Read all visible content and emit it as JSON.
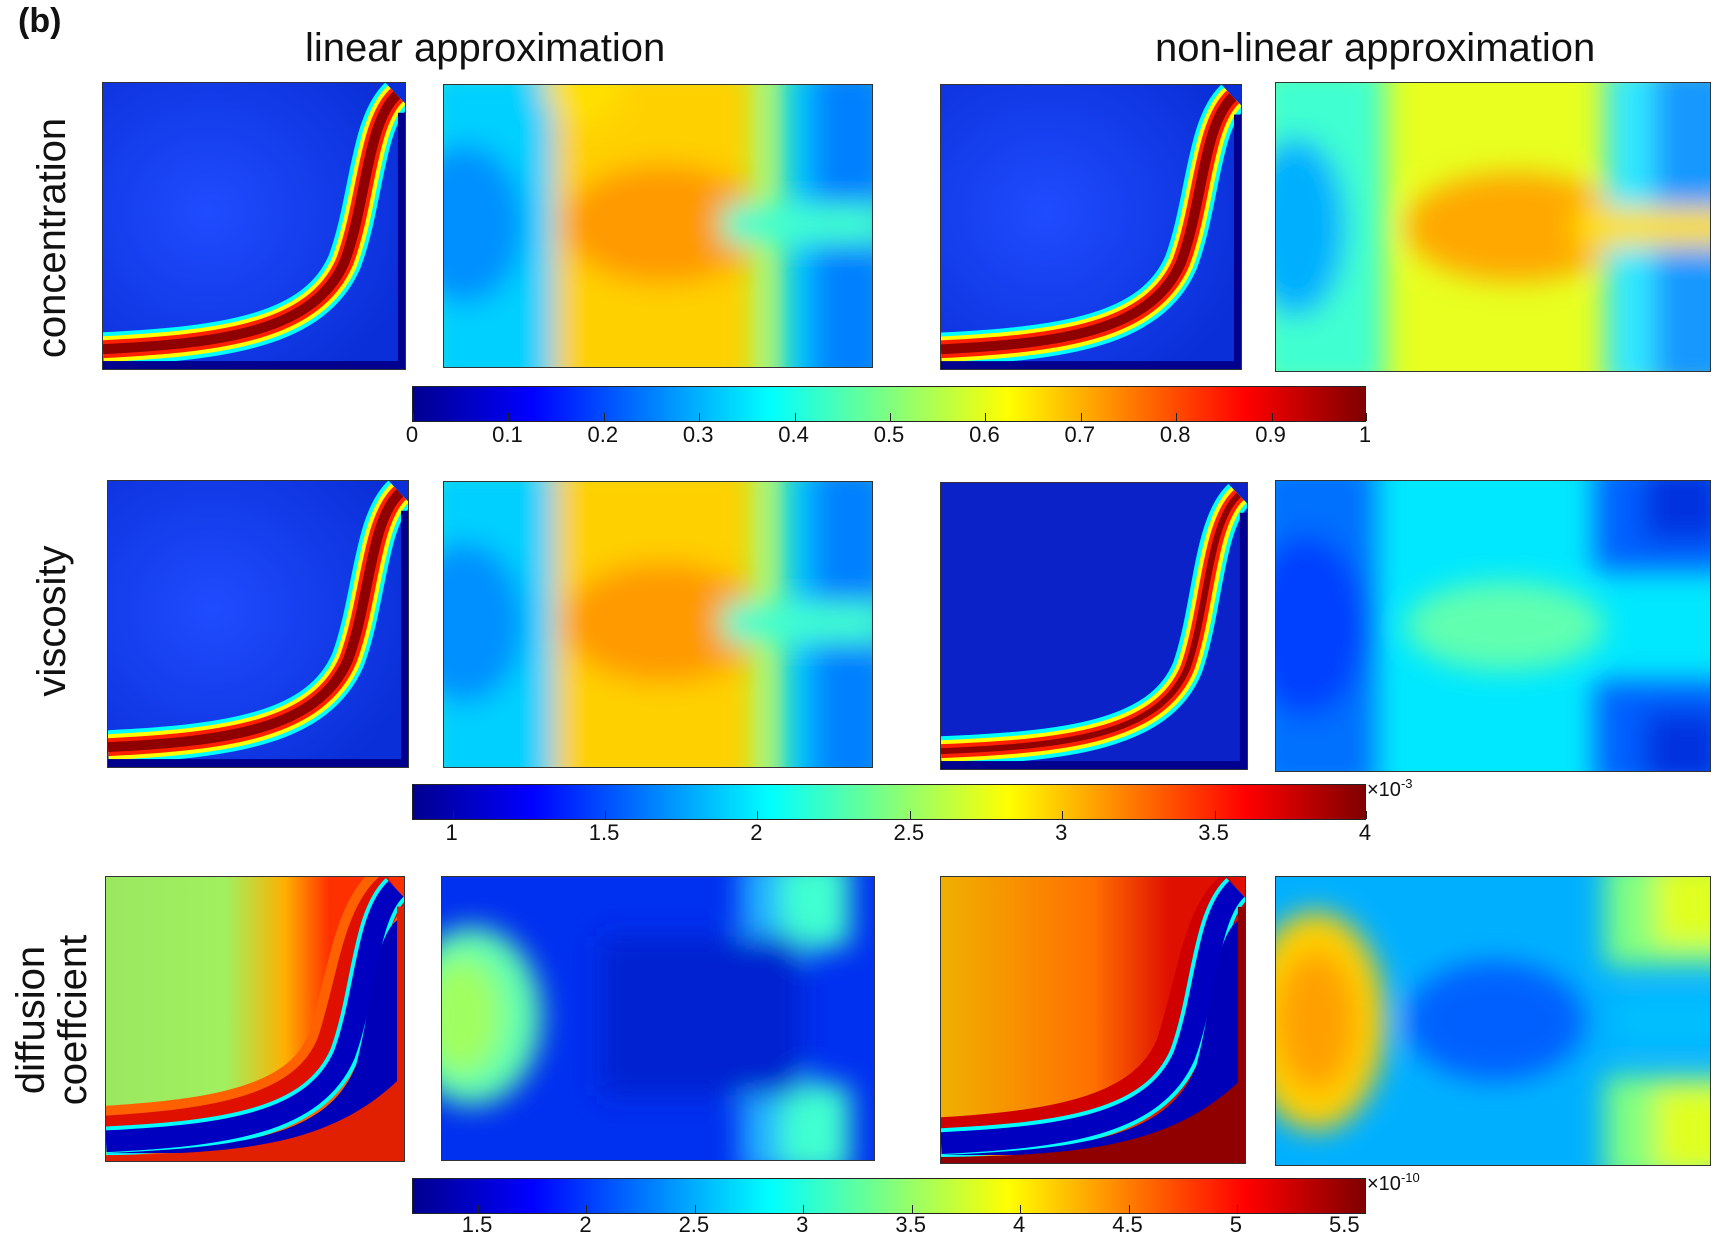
{
  "figure": {
    "panel_label": "(b)",
    "columns": [
      "linear approximation",
      "non-linear approximation"
    ],
    "rows": [
      {
        "label": "concentration"
      },
      {
        "label": "viscosity"
      },
      {
        "label_lines": [
          "diffusion",
          "coeffcient"
        ]
      }
    ]
  },
  "colorbars": [
    {
      "min": 0,
      "max": 1,
      "ticks": [
        "0",
        "0.1",
        "0.2",
        "0.3",
        "0.4",
        "0.5",
        "0.6",
        "0.7",
        "0.8",
        "0.9",
        "1"
      ],
      "tick_values": [
        0,
        0.1,
        0.2,
        0.3,
        0.4,
        0.5,
        0.6,
        0.7,
        0.8,
        0.9,
        1
      ],
      "exponent": ""
    },
    {
      "min": 0.87,
      "max": 4,
      "ticks": [
        "1",
        "1.5",
        "2",
        "2.5",
        "3",
        "3.5",
        "4"
      ],
      "tick_values": [
        1,
        1.5,
        2,
        2.5,
        3,
        3.5,
        4
      ],
      "exponent_base": "×10",
      "exponent_power": "-3"
    },
    {
      "min": 1.2,
      "max": 5.6,
      "ticks": [
        "1.5",
        "2",
        "2.5",
        "3",
        "3.5",
        "4",
        "4.5",
        "5",
        "5.5"
      ],
      "tick_values": [
        1.5,
        2,
        2.5,
        3,
        3.5,
        4,
        4.5,
        5,
        5.5
      ],
      "exponent_base": "×10",
      "exponent_power": "-10"
    }
  ],
  "colormap": "jet",
  "colors": {
    "jet": [
      "#00008f",
      "#0000ff",
      "#007fff",
      "#00ffff",
      "#7fff7f",
      "#ffff00",
      "#ff7f00",
      "#ff0000",
      "#7f0000"
    ]
  }
}
